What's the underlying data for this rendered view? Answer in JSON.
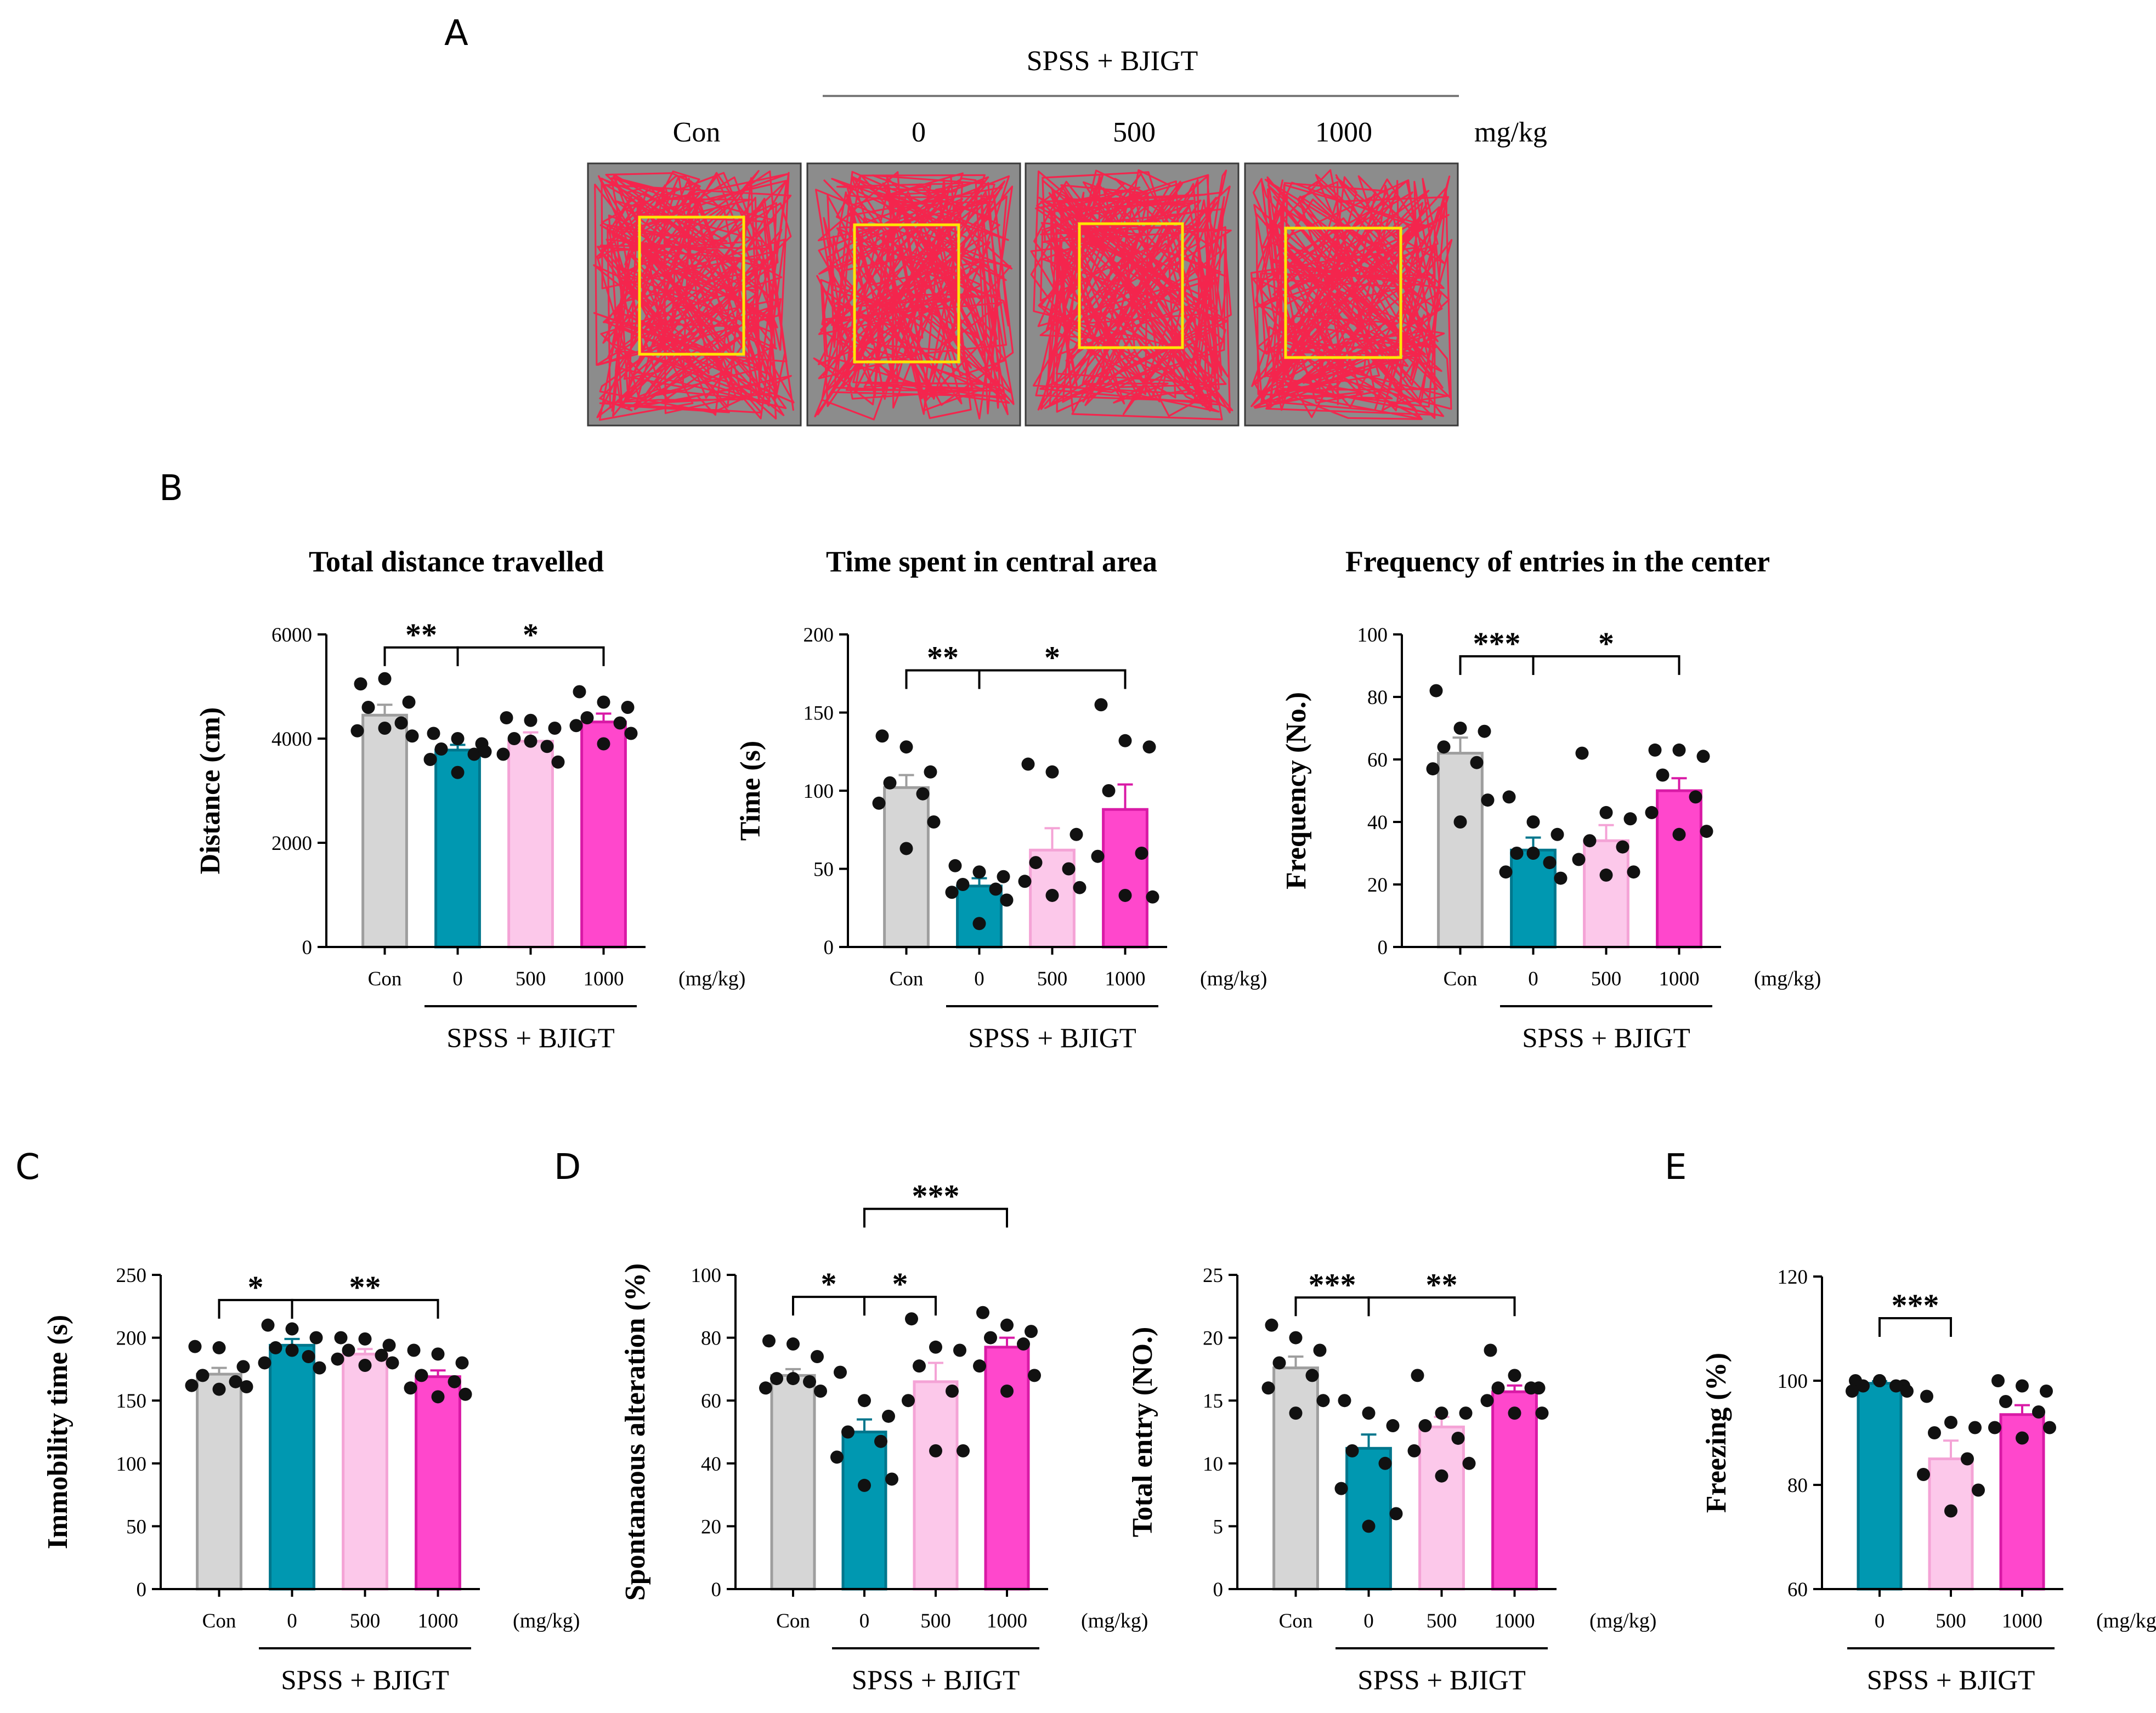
{
  "figure": {
    "panel_letters": [
      "A",
      "B",
      "C",
      "D",
      "E"
    ],
    "colors": {
      "con": "#d6d6d6",
      "con_stroke": "#9e9e9e",
      "spss0": "#0098b1",
      "spss0_stroke": "#00768c",
      "d500": "#fcc8ea",
      "d500_stroke": "#f4a3d6",
      "d1000": "#ff47cc",
      "d1000_stroke": "#d91aa6",
      "track": "#ff1a46",
      "arena": "#8c8c8c",
      "center_box": "#ffe600"
    }
  },
  "panelA": {
    "letter": "A",
    "group_label": "SPSS + BJIGT",
    "headers": [
      "Con",
      "0",
      "500",
      "1000"
    ],
    "unit": "mg/kg",
    "arenas": [
      {
        "name": "Con",
        "seed": 11
      },
      {
        "name": "0",
        "seed": 23
      },
      {
        "name": "500",
        "seed": 37
      },
      {
        "name": "1000",
        "seed": 51
      }
    ]
  },
  "chart_data": [
    {
      "id": "distance",
      "panel": "B",
      "type": "bar",
      "title": "Total distance travelled",
      "ylabel": "Distance (cm)",
      "ylim": [
        0,
        6000
      ],
      "yticks": [
        0,
        2000,
        4000,
        6000
      ],
      "categories": [
        "Con",
        "0",
        "500",
        "1000"
      ],
      "unit": "(mg/kg)",
      "group_label": "SPSS + BJIGT",
      "values": [
        4450,
        3780,
        3950,
        4320
      ],
      "errors": [
        200,
        100,
        170,
        160
      ],
      "points": [
        [
          5050,
          5150,
          4700,
          4600,
          4300,
          4150,
          4050,
          4200
        ],
        [
          4100,
          4000,
          3900,
          3800,
          3700,
          3600,
          3750,
          3350
        ],
        [
          4400,
          4350,
          4200,
          4000,
          3850,
          3700,
          3550,
          3950
        ],
        [
          4900,
          4700,
          4600,
          4400,
          4300,
          4250,
          4100,
          3900
        ]
      ],
      "significance": [
        {
          "from": 0,
          "to": 1,
          "label": "**",
          "y": 5750
        },
        {
          "from": 1,
          "to": 3,
          "label": "*",
          "y": 5750
        }
      ]
    },
    {
      "id": "central_time",
      "panel": "B",
      "type": "bar",
      "title": "Time spent in central area",
      "ylabel": "Time (s)",
      "ylim": [
        0,
        200
      ],
      "yticks": [
        0,
        50,
        100,
        150,
        200
      ],
      "categories": [
        "Con",
        "0",
        "500",
        "1000"
      ],
      "unit": "(mg/kg)",
      "group_label": "SPSS + BJIGT",
      "values": [
        102,
        39,
        62,
        88
      ],
      "errors": [
        8,
        5,
        14,
        16
      ],
      "points": [
        [
          135,
          128,
          112,
          105,
          98,
          92,
          80,
          63
        ],
        [
          52,
          48,
          45,
          40,
          37,
          35,
          30,
          15
        ],
        [
          117,
          112,
          72,
          54,
          50,
          42,
          38,
          33
        ],
        [
          155,
          132,
          128,
          100,
          60,
          58,
          32,
          33
        ]
      ],
      "significance": [
        {
          "from": 0,
          "to": 1,
          "label": "**",
          "y": 177
        },
        {
          "from": 1,
          "to": 3,
          "label": "*",
          "y": 177
        }
      ]
    },
    {
      "id": "center_freq",
      "panel": "B",
      "type": "bar",
      "title": "Frequency of entries in the center",
      "ylabel": "Frequency (No.)",
      "ylim": [
        0,
        100
      ],
      "yticks": [
        0,
        20,
        40,
        60,
        80,
        100
      ],
      "categories": [
        "Con",
        "0",
        "500",
        "1000"
      ],
      "unit": "(mg/kg)",
      "group_label": "SPSS + BJIGT",
      "values": [
        62,
        31,
        34,
        50
      ],
      "errors": [
        5,
        4,
        5,
        4
      ],
      "points": [
        [
          82,
          70,
          69,
          64,
          59,
          57,
          47,
          40
        ],
        [
          48,
          40,
          36,
          30,
          27,
          24,
          22,
          30
        ],
        [
          62,
          43,
          41,
          34,
          32,
          28,
          24,
          23
        ],
        [
          63,
          63,
          61,
          55,
          48,
          43,
          37,
          36
        ]
      ],
      "significance": [
        {
          "from": 0,
          "to": 1,
          "label": "***",
          "y": 93
        },
        {
          "from": 1,
          "to": 3,
          "label": "*",
          "y": 93
        }
      ]
    },
    {
      "id": "immobility",
      "panel": "C",
      "type": "bar",
      "title": "",
      "ylabel": "Immobility time (s)",
      "ylim": [
        0,
        250
      ],
      "yticks": [
        0,
        50,
        100,
        150,
        200,
        250
      ],
      "categories": [
        "Con",
        "0",
        "500",
        "1000"
      ],
      "unit": "(mg/kg)",
      "group_label": "SPSS + BJIGT",
      "values": [
        171,
        194,
        187,
        169
      ],
      "errors": [
        5,
        5,
        4,
        5
      ],
      "points": [
        [
          193,
          192,
          177,
          170,
          165,
          162,
          161,
          159
        ],
        [
          210,
          207,
          200,
          192,
          185,
          180,
          176,
          190
        ],
        [
          200,
          199,
          194,
          190,
          186,
          183,
          180,
          178
        ],
        [
          190,
          187,
          180,
          170,
          165,
          160,
          155,
          153
        ]
      ],
      "significance": [
        {
          "from": 0,
          "to": 1,
          "label": "*",
          "y": 230
        },
        {
          "from": 1,
          "to": 3,
          "label": "**",
          "y": 230
        }
      ]
    },
    {
      "id": "alteration",
      "panel": "D",
      "type": "bar",
      "title": "",
      "ylabel": "Spontanaous alteration (%)",
      "ylim": [
        0,
        100
      ],
      "yticks": [
        0,
        20,
        40,
        60,
        80,
        100
      ],
      "categories": [
        "Con",
        "0",
        "500",
        "1000"
      ],
      "unit": "(mg/kg)",
      "group_label": "SPSS + BJIGT",
      "values": [
        68,
        50,
        66,
        77
      ],
      "errors": [
        2,
        4,
        6,
        3
      ],
      "points": [
        [
          79,
          78,
          74,
          67,
          66,
          64,
          63,
          67
        ],
        [
          69,
          60,
          55,
          50,
          47,
          42,
          35,
          33
        ],
        [
          86,
          77,
          76,
          71,
          63,
          60,
          44,
          44
        ],
        [
          88,
          84,
          82,
          80,
          78,
          71,
          68,
          63
        ]
      ],
      "significance": [
        {
          "from": 0,
          "to": 1,
          "label": "*",
          "y": 93
        },
        {
          "from": 1,
          "to": 2,
          "label": "*",
          "y": 93
        },
        {
          "from": 1,
          "to": 3,
          "label": "***",
          "y": 121
        }
      ]
    },
    {
      "id": "total_entry",
      "panel": "D",
      "type": "bar",
      "title": "",
      "ylabel": "Total entry (NO.)",
      "ylim": [
        0,
        25
      ],
      "yticks": [
        0,
        5,
        10,
        15,
        20,
        25
      ],
      "categories": [
        "Con",
        "0",
        "500",
        "1000"
      ],
      "unit": "(mg/kg)",
      "group_label": "SPSS + BJIGT",
      "values": [
        17.6,
        11.2,
        12.9,
        15.7
      ],
      "errors": [
        0.9,
        1.1,
        0.8,
        0.5
      ],
      "points": [
        [
          21,
          20,
          19,
          18,
          17,
          16,
          15,
          14
        ],
        [
          15,
          14,
          13,
          11,
          10,
          8,
          6,
          5
        ],
        [
          17,
          14,
          14,
          13,
          12,
          11,
          10,
          9
        ],
        [
          19,
          17,
          16,
          16,
          16,
          15,
          14,
          14
        ]
      ],
      "significance": [
        {
          "from": 0,
          "to": 1,
          "label": "***",
          "y": 23.2
        },
        {
          "from": 1,
          "to": 3,
          "label": "**",
          "y": 23.2
        }
      ]
    },
    {
      "id": "freezing",
      "panel": "E",
      "type": "bar",
      "title": "",
      "ylabel": "Freezing (%)",
      "ylim": [
        60,
        120
      ],
      "yticks": [
        60,
        80,
        100,
        120
      ],
      "categories": [
        "0",
        "500",
        "1000"
      ],
      "unit": "(mg/kg)",
      "group_label": "SPSS + BJIGT",
      "values": [
        99.5,
        85,
        93.5
      ],
      "errors": [
        0.4,
        3.5,
        1.8
      ],
      "points": [
        [
          100,
          100,
          99,
          99,
          99,
          98,
          98,
          100
        ],
        [
          97,
          92,
          91,
          90,
          85,
          82,
          79,
          75
        ],
        [
          100,
          99,
          98,
          96,
          94,
          91,
          91,
          89
        ]
      ],
      "colors": [
        "spss0",
        "d500",
        "d1000"
      ],
      "significance": [
        {
          "from": 0,
          "to": 1,
          "label": "***",
          "y": 112
        }
      ]
    }
  ]
}
